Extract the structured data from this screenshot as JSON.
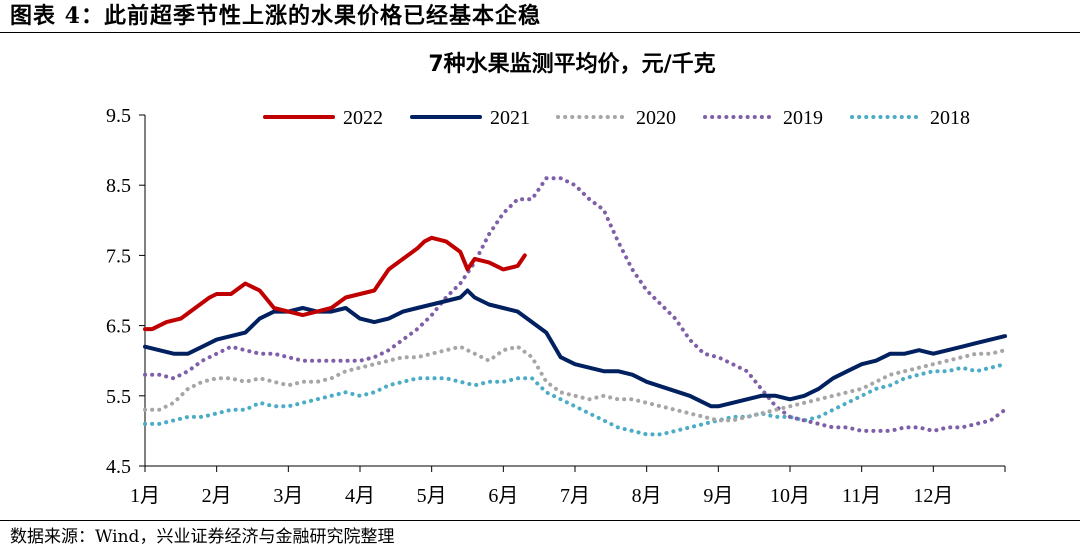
{
  "figure_title": "图表 4：此前超季节性上涨的水果价格已经基本企稳",
  "source": "数据来源：Wind，兴业证券经济与金融研究院整理",
  "chart_data": {
    "type": "line",
    "title": "7种水果监测平均价，元/千克",
    "xlabel": "",
    "ylabel": "",
    "x_ticks": [
      "1月",
      "2月",
      "3月",
      "4月",
      "5月",
      "6月",
      "7月",
      "8月",
      "9月",
      "10月",
      "11月",
      "12月"
    ],
    "y_ticks": [
      "9.5",
      "8.5",
      "7.5",
      "6.5",
      "5.5",
      "4.5"
    ],
    "ylim": [
      4.5,
      9.5
    ],
    "xlim": [
      1,
      13
    ],
    "grid": false,
    "legend_position": "top",
    "series": [
      {
        "name": "2022",
        "color": "#c00000",
        "style": "solid",
        "x": [
          1.0,
          1.1,
          1.3,
          1.5,
          1.7,
          1.9,
          2.0,
          2.2,
          2.4,
          2.6,
          2.8,
          3.0,
          3.2,
          3.4,
          3.6,
          3.8,
          4.0,
          4.2,
          4.4,
          4.6,
          4.8,
          4.9,
          5.0,
          5.2,
          5.4,
          5.5,
          5.6,
          5.8,
          6.0,
          6.2,
          6.3
        ],
        "values": [
          6.45,
          6.45,
          6.55,
          6.6,
          6.75,
          6.9,
          6.95,
          6.95,
          7.1,
          7.0,
          6.75,
          6.7,
          6.65,
          6.7,
          6.75,
          6.9,
          6.95,
          7.0,
          7.3,
          7.45,
          7.6,
          7.7,
          7.75,
          7.7,
          7.55,
          7.3,
          7.45,
          7.4,
          7.3,
          7.35,
          7.5
        ]
      },
      {
        "name": "2021",
        "color": "#002060",
        "style": "solid",
        "x": [
          1.0,
          1.2,
          1.4,
          1.6,
          1.8,
          2.0,
          2.2,
          2.4,
          2.6,
          2.8,
          3.0,
          3.2,
          3.4,
          3.6,
          3.8,
          4.0,
          4.2,
          4.4,
          4.6,
          4.8,
          5.0,
          5.2,
          5.4,
          5.5,
          5.6,
          5.8,
          6.0,
          6.2,
          6.4,
          6.6,
          6.8,
          7.0,
          7.2,
          7.4,
          7.6,
          7.8,
          8.0,
          8.3,
          8.6,
          8.9,
          9.0,
          9.2,
          9.4,
          9.6,
          9.8,
          10.0,
          10.2,
          10.4,
          10.6,
          10.8,
          11.0,
          11.2,
          11.4,
          11.6,
          11.8,
          12.0,
          12.2,
          12.4,
          12.6,
          12.8,
          13.0
        ],
        "values": [
          6.2,
          6.15,
          6.1,
          6.1,
          6.2,
          6.3,
          6.35,
          6.4,
          6.6,
          6.7,
          6.7,
          6.75,
          6.7,
          6.7,
          6.75,
          6.6,
          6.55,
          6.6,
          6.7,
          6.75,
          6.8,
          6.85,
          6.9,
          7.0,
          6.9,
          6.8,
          6.75,
          6.7,
          6.55,
          6.4,
          6.05,
          5.95,
          5.9,
          5.85,
          5.85,
          5.8,
          5.7,
          5.6,
          5.5,
          5.35,
          5.35,
          5.4,
          5.45,
          5.5,
          5.5,
          5.45,
          5.5,
          5.6,
          5.75,
          5.85,
          5.95,
          6.0,
          6.1,
          6.1,
          6.15,
          6.1,
          6.15,
          6.2,
          6.25,
          6.3,
          6.35
        ]
      },
      {
        "name": "2020",
        "color": "#a6a6a6",
        "style": "dotted",
        "x": [
          1.0,
          1.2,
          1.4,
          1.6,
          1.8,
          2.0,
          2.2,
          2.4,
          2.6,
          2.8,
          3.0,
          3.2,
          3.4,
          3.6,
          3.8,
          4.0,
          4.2,
          4.4,
          4.6,
          4.8,
          5.0,
          5.2,
          5.4,
          5.6,
          5.8,
          6.0,
          6.2,
          6.4,
          6.6,
          6.8,
          7.0,
          7.2,
          7.4,
          7.6,
          7.8,
          8.0,
          8.2,
          8.4,
          8.6,
          8.8,
          9.0,
          9.2,
          9.4,
          9.6,
          9.8,
          10.0,
          10.2,
          10.4,
          10.6,
          10.8,
          11.0,
          11.2,
          11.4,
          11.6,
          11.8,
          12.0,
          12.2,
          12.4,
          12.6,
          12.8,
          13.0
        ],
        "values": [
          5.3,
          5.3,
          5.4,
          5.6,
          5.7,
          5.75,
          5.75,
          5.7,
          5.75,
          5.7,
          5.65,
          5.7,
          5.7,
          5.75,
          5.85,
          5.9,
          5.95,
          6.0,
          6.05,
          6.05,
          6.1,
          6.15,
          6.2,
          6.1,
          6.0,
          6.15,
          6.2,
          6.05,
          5.7,
          5.55,
          5.5,
          5.45,
          5.5,
          5.45,
          5.45,
          5.4,
          5.35,
          5.3,
          5.25,
          5.2,
          5.15,
          5.15,
          5.2,
          5.25,
          5.3,
          5.35,
          5.4,
          5.45,
          5.5,
          5.55,
          5.6,
          5.7,
          5.8,
          5.85,
          5.9,
          5.95,
          6.0,
          6.05,
          6.1,
          6.1,
          6.15
        ]
      },
      {
        "name": "2019",
        "color": "#7f60a8",
        "style": "dotted",
        "x": [
          1.0,
          1.2,
          1.4,
          1.6,
          1.8,
          2.0,
          2.2,
          2.4,
          2.6,
          2.8,
          3.0,
          3.2,
          3.4,
          3.6,
          3.8,
          4.0,
          4.2,
          4.4,
          4.6,
          4.8,
          5.0,
          5.2,
          5.4,
          5.6,
          5.8,
          6.0,
          6.2,
          6.4,
          6.6,
          6.8,
          7.0,
          7.2,
          7.4,
          7.6,
          7.8,
          8.0,
          8.2,
          8.4,
          8.6,
          8.8,
          9.0,
          9.2,
          9.4,
          9.6,
          9.8,
          10.0,
          10.2,
          10.4,
          10.6,
          10.8,
          11.0,
          11.2,
          11.4,
          11.6,
          11.8,
          12.0,
          12.2,
          12.4,
          12.6,
          12.8,
          13.0
        ],
        "values": [
          5.8,
          5.8,
          5.75,
          5.85,
          6.0,
          6.1,
          6.2,
          6.15,
          6.1,
          6.1,
          6.05,
          6.0,
          6.0,
          6.0,
          6.0,
          6.0,
          6.05,
          6.15,
          6.3,
          6.45,
          6.65,
          6.9,
          7.1,
          7.4,
          7.8,
          8.1,
          8.3,
          8.3,
          8.6,
          8.6,
          8.5,
          8.3,
          8.15,
          7.7,
          7.3,
          7.0,
          6.8,
          6.6,
          6.3,
          6.1,
          6.05,
          5.95,
          5.85,
          5.6,
          5.35,
          5.2,
          5.15,
          5.1,
          5.05,
          5.05,
          5.0,
          5.0,
          5.0,
          5.05,
          5.05,
          5.0,
          5.05,
          5.05,
          5.1,
          5.15,
          5.3
        ]
      },
      {
        "name": "2018",
        "color": "#4bacc6",
        "style": "dotted",
        "x": [
          1.0,
          1.2,
          1.4,
          1.6,
          1.8,
          2.0,
          2.2,
          2.4,
          2.6,
          2.8,
          3.0,
          3.2,
          3.4,
          3.6,
          3.8,
          4.0,
          4.2,
          4.4,
          4.6,
          4.8,
          5.0,
          5.2,
          5.4,
          5.6,
          5.8,
          6.0,
          6.2,
          6.4,
          6.6,
          6.8,
          7.0,
          7.2,
          7.4,
          7.6,
          7.8,
          8.0,
          8.2,
          8.4,
          8.6,
          8.8,
          9.0,
          9.2,
          9.4,
          9.6,
          9.8,
          10.0,
          10.2,
          10.4,
          10.6,
          10.8,
          11.0,
          11.2,
          11.4,
          11.6,
          11.8,
          12.0,
          12.2,
          12.4,
          12.6,
          12.8,
          13.0
        ],
        "values": [
          5.1,
          5.1,
          5.15,
          5.2,
          5.2,
          5.25,
          5.3,
          5.3,
          5.4,
          5.35,
          5.35,
          5.4,
          5.45,
          5.5,
          5.55,
          5.5,
          5.55,
          5.65,
          5.7,
          5.75,
          5.75,
          5.75,
          5.7,
          5.65,
          5.7,
          5.7,
          5.75,
          5.75,
          5.55,
          5.45,
          5.35,
          5.25,
          5.15,
          5.05,
          5.0,
          4.95,
          4.95,
          5.0,
          5.05,
          5.1,
          5.15,
          5.2,
          5.2,
          5.25,
          5.2,
          5.2,
          5.15,
          5.2,
          5.3,
          5.4,
          5.5,
          5.6,
          5.65,
          5.75,
          5.8,
          5.85,
          5.85,
          5.9,
          5.85,
          5.9,
          5.95
        ]
      }
    ]
  }
}
